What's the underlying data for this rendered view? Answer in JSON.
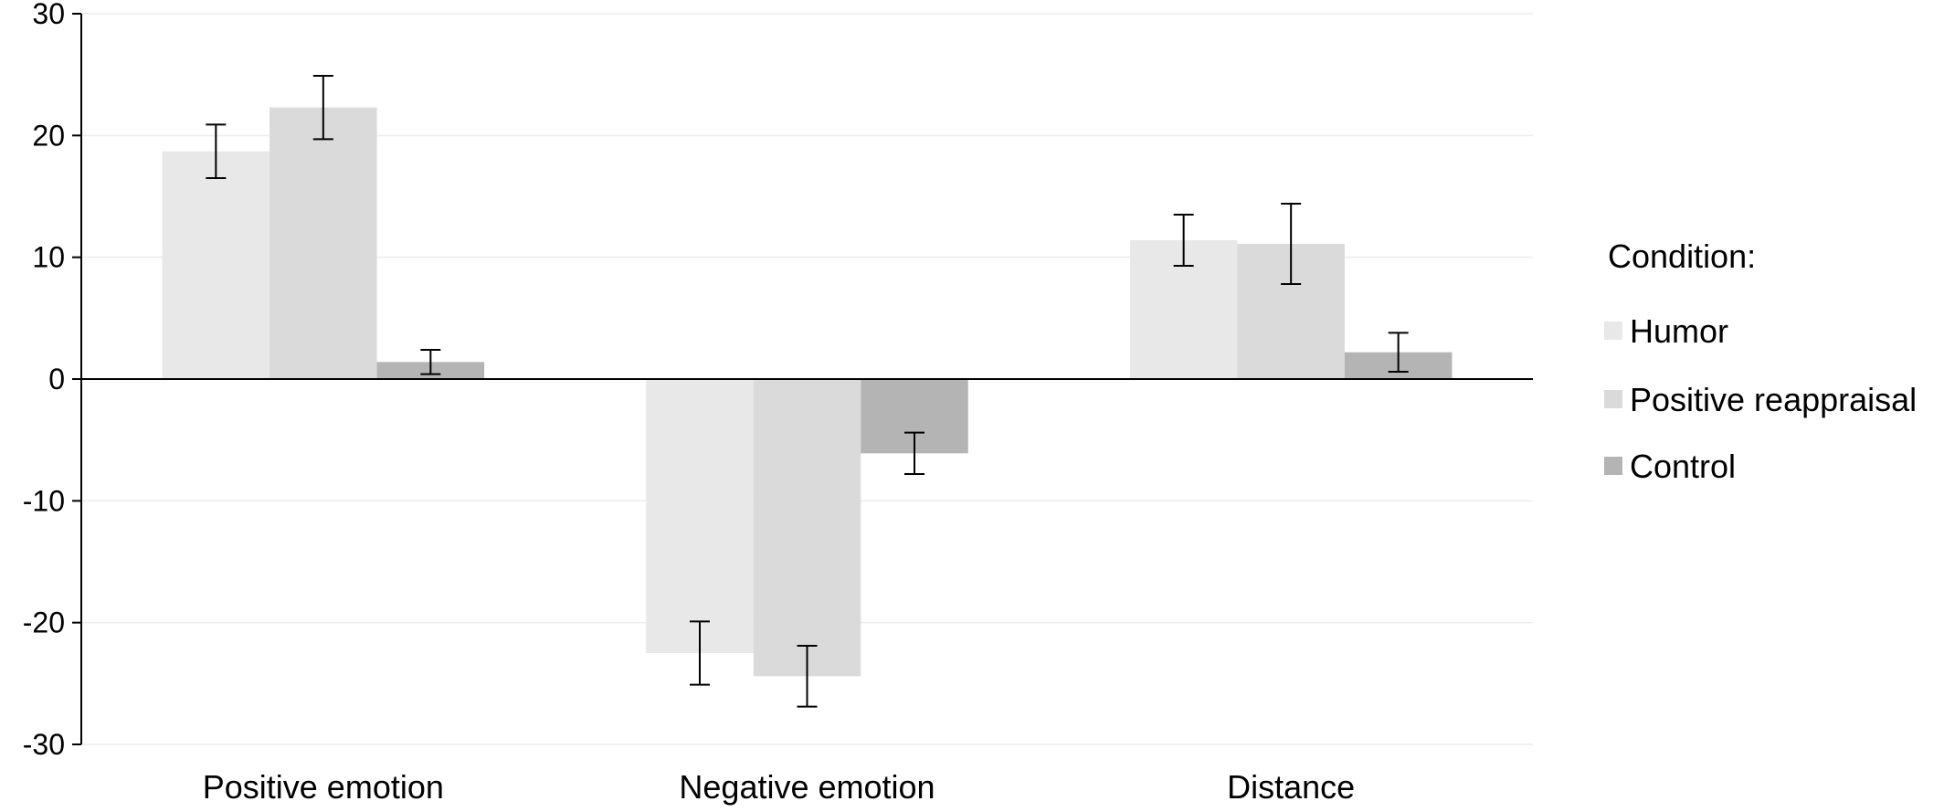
{
  "chart_data": {
    "type": "bar",
    "title": "",
    "xlabel": "",
    "ylabel": "",
    "ylim": [
      -30,
      30
    ],
    "yticks": [
      30,
      20,
      10,
      0,
      -10,
      -20,
      -30
    ],
    "grid": true,
    "legend_position": "right",
    "categories": [
      "Positive emotion",
      "Negative emotion",
      "Distance"
    ],
    "legend_title": "Condition:",
    "series": [
      {
        "name": "Humor",
        "color": "#e8e8e8",
        "values": [
          18.7,
          -22.5,
          11.4
        ],
        "errors": [
          2.2,
          2.6,
          2.1
        ]
      },
      {
        "name": "Positive reappraisal",
        "color": "#dadada",
        "values": [
          22.3,
          -24.4,
          11.1
        ],
        "errors": [
          2.6,
          2.5,
          3.3
        ]
      },
      {
        "name": "Control",
        "color": "#b4b4b4",
        "values": [
          1.4,
          -6.1,
          2.2
        ],
        "errors": [
          1.0,
          1.7,
          1.6
        ]
      }
    ]
  }
}
